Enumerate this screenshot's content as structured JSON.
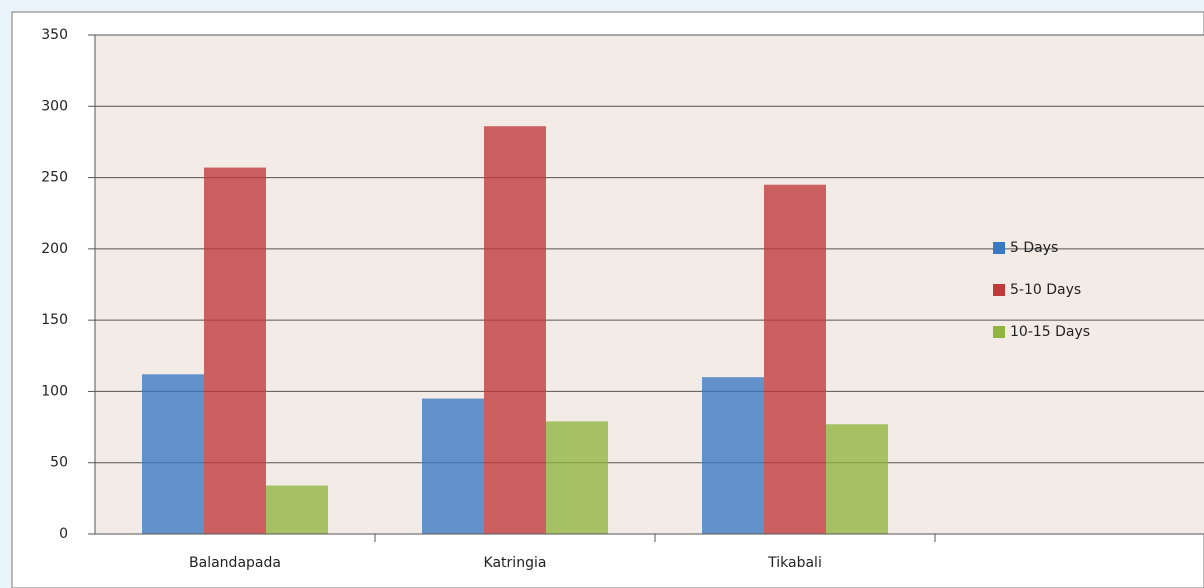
{
  "chart_data": {
    "type": "bar",
    "categories": [
      "Balandapada",
      "Katringia",
      "Tikabali",
      null
    ],
    "series": [
      {
        "name": "5 Days",
        "color": "#3a78c3",
        "values": [
          112,
          95,
          110,
          null
        ]
      },
      {
        "name": "5-10 Days",
        "color": "#c0393a",
        "values": [
          257,
          286,
          245,
          null
        ]
      },
      {
        "name": "10-15 Days",
        "color": "#8fb43f",
        "values": [
          34,
          79,
          77,
          null
        ]
      }
    ],
    "ylim": [
      0,
      350
    ],
    "yticks": [
      0,
      50,
      100,
      150,
      200,
      250,
      300,
      350
    ],
    "grid": true
  }
}
